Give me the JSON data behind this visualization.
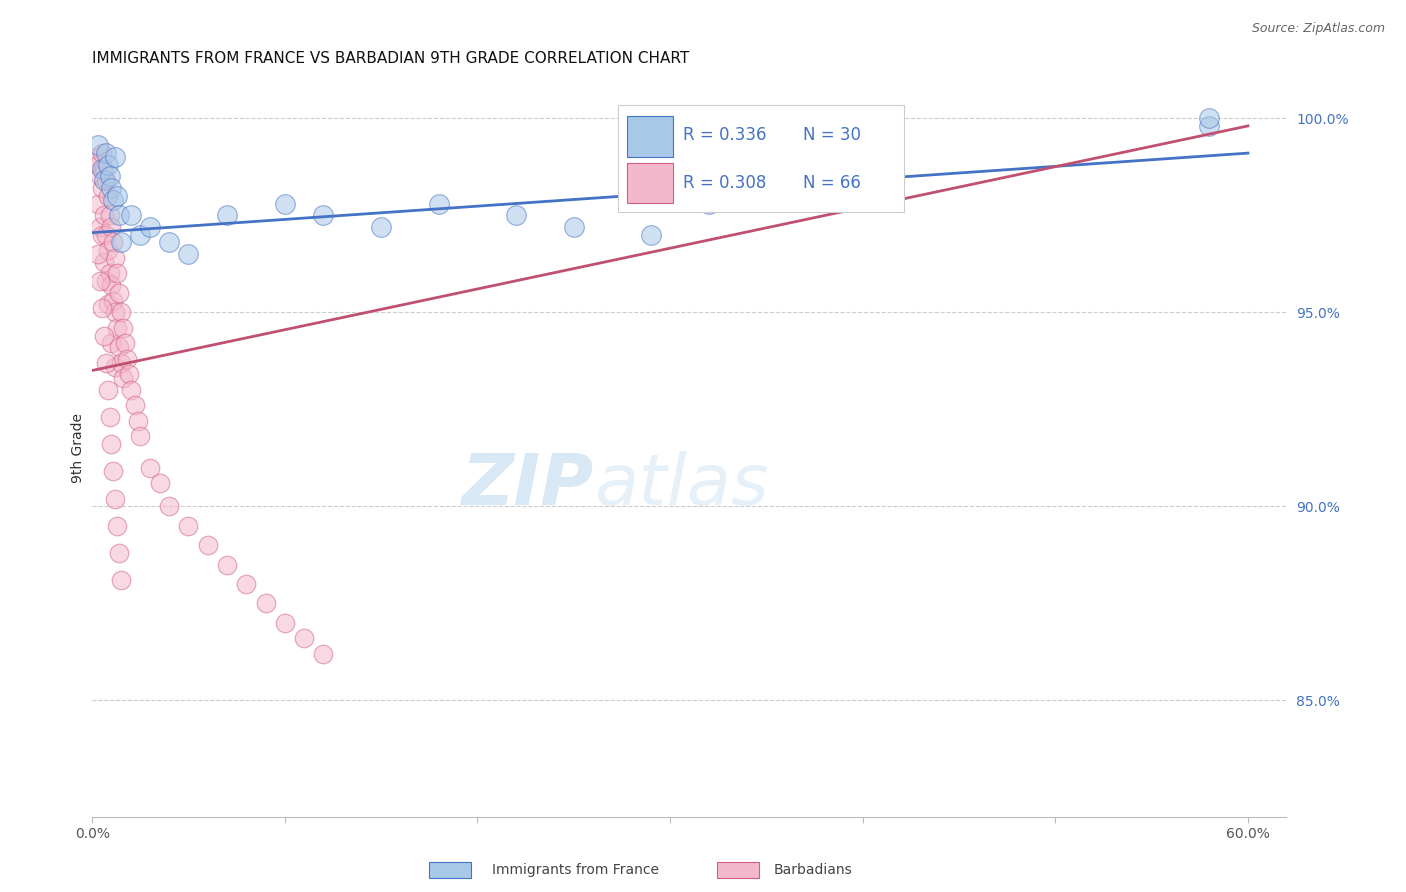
{
  "title": "IMMIGRANTS FROM FRANCE VS BARBADIAN 9TH GRADE CORRELATION CHART",
  "source": "Source: ZipAtlas.com",
  "ylabel": "9th Grade",
  "watermark": "ZIPatlas",
  "xlim": [
    0.0,
    0.62
  ],
  "ylim": [
    0.82,
    1.01
  ],
  "xticks": [
    0.0,
    0.1,
    0.2,
    0.3,
    0.4,
    0.5,
    0.6
  ],
  "xticklabels": [
    "0.0%",
    "",
    "",
    "",
    "",
    "",
    "60.0%"
  ],
  "yticks_right": [
    0.85,
    0.9,
    0.95,
    1.0
  ],
  "ytick_right_labels": [
    "85.0%",
    "90.0%",
    "95.0%",
    "100.0%"
  ],
  "legend_line1": "R = 0.336   N = 30",
  "legend_line2": "R = 0.308   N = 66",
  "legend_label1": "Immigrants from France",
  "legend_label2": "Barbadians",
  "blue_fill": "#A8C8E8",
  "blue_edge": "#4472C4",
  "pink_fill": "#F4B8CC",
  "pink_edge": "#D06080",
  "blue_line_color": "#4472C4",
  "pink_line_color": "#C05070",
  "blue_x": [
    0.003,
    0.005,
    0.006,
    0.007,
    0.008,
    0.009,
    0.01,
    0.011,
    0.012,
    0.013,
    0.014,
    0.015,
    0.02,
    0.025,
    0.03,
    0.04,
    0.05,
    0.07,
    0.1,
    0.12,
    0.15,
    0.18,
    0.22,
    0.25,
    0.29,
    0.32,
    0.35,
    0.4,
    0.58,
    0.58
  ],
  "blue_y": [
    0.993,
    0.987,
    0.984,
    0.991,
    0.988,
    0.985,
    0.982,
    0.979,
    0.99,
    0.98,
    0.975,
    0.968,
    0.975,
    0.97,
    0.972,
    0.968,
    0.965,
    0.975,
    0.978,
    0.975,
    0.972,
    0.978,
    0.975,
    0.972,
    0.97,
    0.978,
    0.98,
    0.985,
    0.998,
    1.0
  ],
  "pink_x": [
    0.002,
    0.003,
    0.003,
    0.004,
    0.004,
    0.005,
    0.005,
    0.005,
    0.006,
    0.006,
    0.006,
    0.007,
    0.007,
    0.007,
    0.008,
    0.008,
    0.008,
    0.009,
    0.009,
    0.01,
    0.01,
    0.01,
    0.011,
    0.011,
    0.012,
    0.012,
    0.012,
    0.013,
    0.013,
    0.014,
    0.014,
    0.015,
    0.015,
    0.016,
    0.016,
    0.017,
    0.018,
    0.019,
    0.02,
    0.022,
    0.024,
    0.025,
    0.03,
    0.035,
    0.04,
    0.05,
    0.06,
    0.07,
    0.08,
    0.09,
    0.1,
    0.11,
    0.12,
    0.003,
    0.004,
    0.005,
    0.006,
    0.007,
    0.008,
    0.009,
    0.01,
    0.011,
    0.012,
    0.013,
    0.014,
    0.015
  ],
  "pink_y": [
    0.99,
    0.988,
    0.978,
    0.985,
    0.972,
    0.991,
    0.982,
    0.97,
    0.987,
    0.975,
    0.963,
    0.984,
    0.97,
    0.958,
    0.98,
    0.966,
    0.952,
    0.975,
    0.96,
    0.972,
    0.957,
    0.942,
    0.968,
    0.953,
    0.964,
    0.95,
    0.936,
    0.96,
    0.946,
    0.955,
    0.941,
    0.95,
    0.937,
    0.946,
    0.933,
    0.942,
    0.938,
    0.934,
    0.93,
    0.926,
    0.922,
    0.918,
    0.91,
    0.906,
    0.9,
    0.895,
    0.89,
    0.885,
    0.88,
    0.875,
    0.87,
    0.866,
    0.862,
    0.965,
    0.958,
    0.951,
    0.944,
    0.937,
    0.93,
    0.923,
    0.916,
    0.909,
    0.902,
    0.895,
    0.888,
    0.881
  ]
}
